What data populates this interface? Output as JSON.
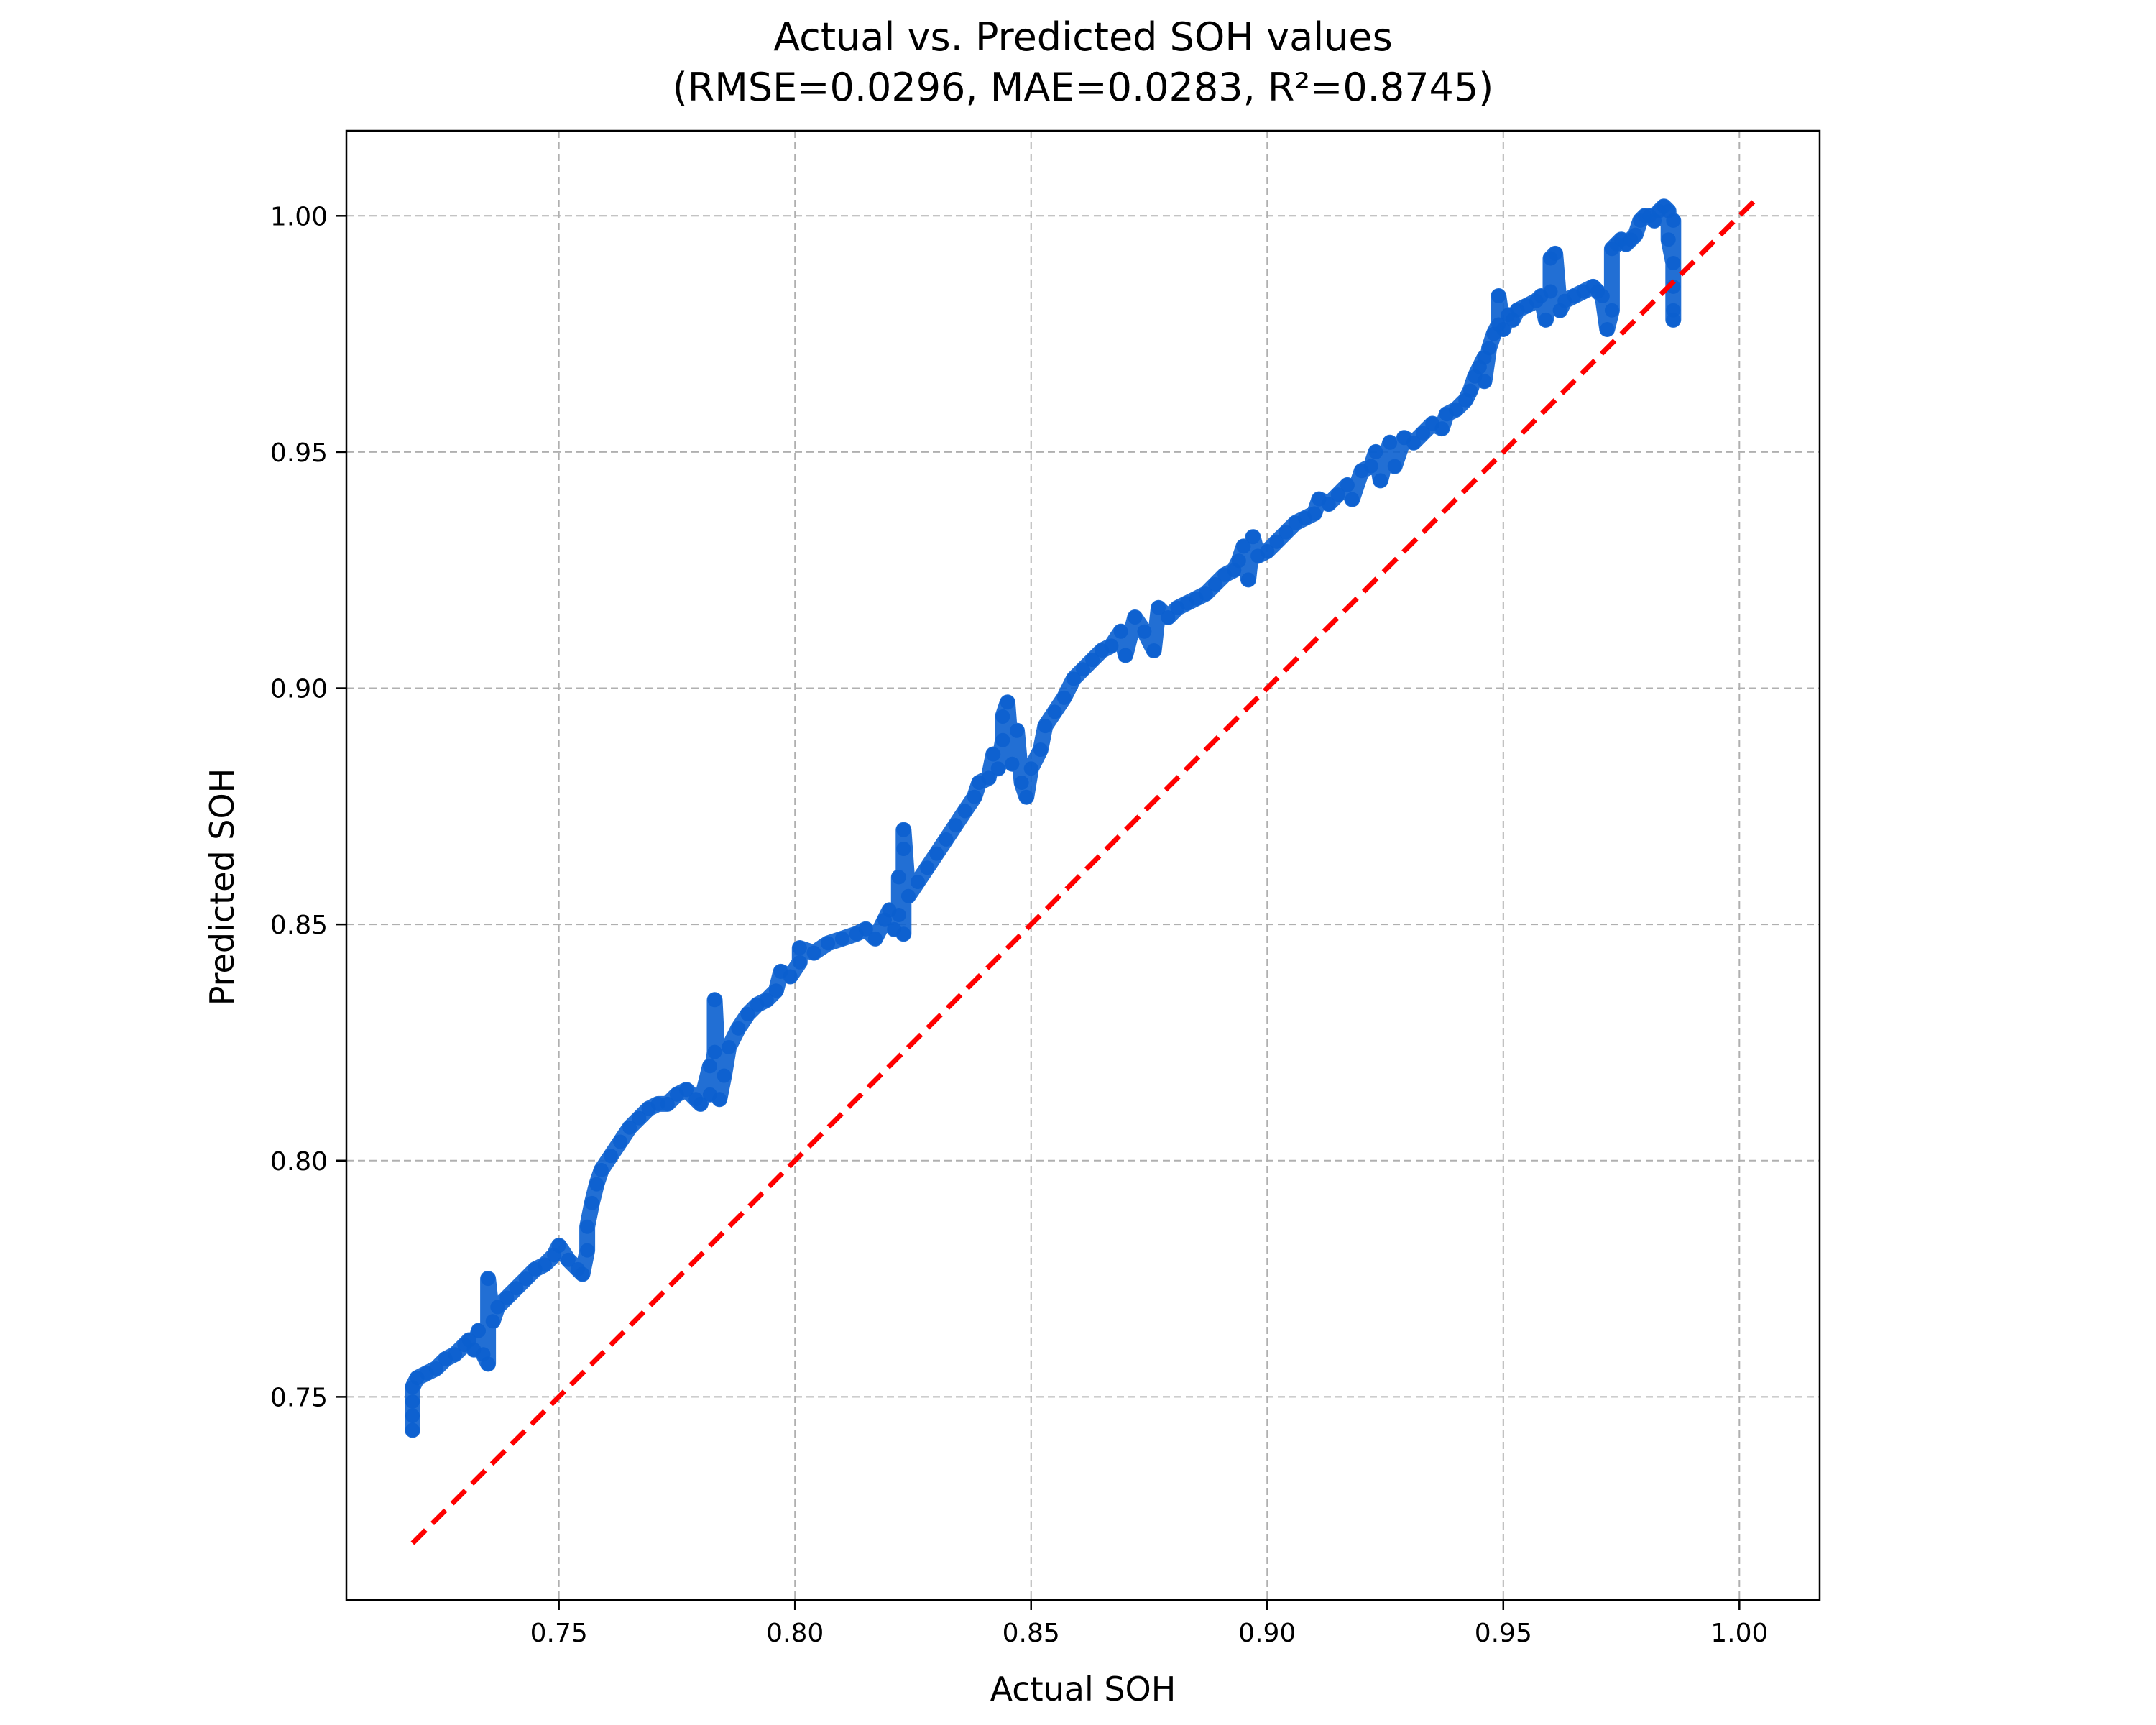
{
  "chart_data": {
    "type": "scatter",
    "title": "Actual vs. Predicted SOH values",
    "subtitle": "(RMSE=0.0296, MAE=0.0283,  R²=0.8745)",
    "xlabel": "Actual SOH",
    "ylabel": "Predicted SOH",
    "xlim": [
      0.705,
      1.017
    ],
    "ylim": [
      0.707,
      1.018
    ],
    "x_ticks": [
      "0.75",
      "0.80",
      "0.85",
      "0.90",
      "0.95",
      "1.00"
    ],
    "y_ticks": [
      "0.75",
      "0.80",
      "0.85",
      "0.90",
      "0.95",
      "1.00"
    ],
    "grid": true,
    "series": [
      {
        "color": "#0a5fcf",
        "marker": "circle",
        "points": [
          [
            0.719,
            0.743
          ],
          [
            0.719,
            0.746
          ],
          [
            0.719,
            0.749
          ],
          [
            0.719,
            0.752
          ],
          [
            0.72,
            0.754
          ],
          [
            0.722,
            0.755
          ],
          [
            0.724,
            0.756
          ],
          [
            0.726,
            0.758
          ],
          [
            0.728,
            0.759
          ],
          [
            0.73,
            0.761
          ],
          [
            0.731,
            0.762
          ],
          [
            0.732,
            0.76
          ],
          [
            0.733,
            0.764
          ],
          [
            0.734,
            0.759
          ],
          [
            0.735,
            0.757
          ],
          [
            0.735,
            0.775
          ],
          [
            0.736,
            0.766
          ],
          [
            0.737,
            0.769
          ],
          [
            0.739,
            0.771
          ],
          [
            0.741,
            0.773
          ],
          [
            0.743,
            0.775
          ],
          [
            0.745,
            0.777
          ],
          [
            0.747,
            0.778
          ],
          [
            0.749,
            0.78
          ],
          [
            0.75,
            0.782
          ],
          [
            0.752,
            0.779
          ],
          [
            0.754,
            0.777
          ],
          [
            0.755,
            0.776
          ],
          [
            0.756,
            0.781
          ],
          [
            0.756,
            0.786
          ],
          [
            0.757,
            0.791
          ],
          [
            0.758,
            0.795
          ],
          [
            0.759,
            0.798
          ],
          [
            0.761,
            0.801
          ],
          [
            0.763,
            0.804
          ],
          [
            0.765,
            0.807
          ],
          [
            0.767,
            0.809
          ],
          [
            0.769,
            0.811
          ],
          [
            0.771,
            0.812
          ],
          [
            0.773,
            0.812
          ],
          [
            0.775,
            0.814
          ],
          [
            0.777,
            0.815
          ],
          [
            0.779,
            0.813
          ],
          [
            0.78,
            0.812
          ],
          [
            0.782,
            0.82
          ],
          [
            0.782,
            0.814
          ],
          [
            0.783,
            0.823
          ],
          [
            0.783,
            0.834
          ],
          [
            0.784,
            0.813
          ],
          [
            0.785,
            0.818
          ],
          [
            0.786,
            0.824
          ],
          [
            0.788,
            0.828
          ],
          [
            0.79,
            0.831
          ],
          [
            0.792,
            0.833
          ],
          [
            0.794,
            0.834
          ],
          [
            0.796,
            0.836
          ],
          [
            0.797,
            0.84
          ],
          [
            0.799,
            0.839
          ],
          [
            0.801,
            0.842
          ],
          [
            0.801,
            0.845
          ],
          [
            0.804,
            0.844
          ],
          [
            0.807,
            0.846
          ],
          [
            0.81,
            0.847
          ],
          [
            0.813,
            0.848
          ],
          [
            0.815,
            0.849
          ],
          [
            0.817,
            0.847
          ],
          [
            0.819,
            0.851
          ],
          [
            0.82,
            0.853
          ],
          [
            0.821,
            0.849
          ],
          [
            0.822,
            0.852
          ],
          [
            0.822,
            0.86
          ],
          [
            0.823,
            0.848
          ],
          [
            0.823,
            0.866
          ],
          [
            0.823,
            0.87
          ],
          [
            0.824,
            0.856
          ],
          [
            0.826,
            0.859
          ],
          [
            0.828,
            0.862
          ],
          [
            0.83,
            0.865
          ],
          [
            0.832,
            0.868
          ],
          [
            0.834,
            0.871
          ],
          [
            0.836,
            0.874
          ],
          [
            0.838,
            0.877
          ],
          [
            0.839,
            0.88
          ],
          [
            0.841,
            0.881
          ],
          [
            0.842,
            0.886
          ],
          [
            0.843,
            0.883
          ],
          [
            0.844,
            0.889
          ],
          [
            0.844,
            0.894
          ],
          [
            0.845,
            0.897
          ],
          [
            0.846,
            0.884
          ],
          [
            0.847,
            0.891
          ],
          [
            0.848,
            0.88
          ],
          [
            0.849,
            0.877
          ],
          [
            0.85,
            0.883
          ],
          [
            0.852,
            0.887
          ],
          [
            0.853,
            0.892
          ],
          [
            0.855,
            0.895
          ],
          [
            0.857,
            0.898
          ],
          [
            0.859,
            0.902
          ],
          [
            0.861,
            0.904
          ],
          [
            0.863,
            0.906
          ],
          [
            0.865,
            0.908
          ],
          [
            0.867,
            0.909
          ],
          [
            0.869,
            0.912
          ],
          [
            0.87,
            0.907
          ],
          [
            0.872,
            0.915
          ],
          [
            0.874,
            0.912
          ],
          [
            0.876,
            0.908
          ],
          [
            0.877,
            0.917
          ],
          [
            0.879,
            0.915
          ],
          [
            0.881,
            0.917
          ],
          [
            0.883,
            0.918
          ],
          [
            0.885,
            0.919
          ],
          [
            0.887,
            0.92
          ],
          [
            0.889,
            0.922
          ],
          [
            0.891,
            0.924
          ],
          [
            0.893,
            0.925
          ],
          [
            0.894,
            0.927
          ],
          [
            0.895,
            0.93
          ],
          [
            0.896,
            0.923
          ],
          [
            0.897,
            0.932
          ],
          [
            0.898,
            0.928
          ],
          [
            0.9,
            0.929
          ],
          [
            0.902,
            0.931
          ],
          [
            0.904,
            0.933
          ],
          [
            0.906,
            0.935
          ],
          [
            0.908,
            0.936
          ],
          [
            0.91,
            0.937
          ],
          [
            0.911,
            0.94
          ],
          [
            0.913,
            0.939
          ],
          [
            0.915,
            0.941
          ],
          [
            0.917,
            0.943
          ],
          [
            0.918,
            0.94
          ],
          [
            0.92,
            0.946
          ],
          [
            0.922,
            0.947
          ],
          [
            0.923,
            0.95
          ],
          [
            0.924,
            0.944
          ],
          [
            0.926,
            0.952
          ],
          [
            0.927,
            0.947
          ],
          [
            0.929,
            0.953
          ],
          [
            0.931,
            0.952
          ],
          [
            0.933,
            0.954
          ],
          [
            0.935,
            0.956
          ],
          [
            0.937,
            0.955
          ],
          [
            0.938,
            0.958
          ],
          [
            0.94,
            0.959
          ],
          [
            0.942,
            0.961
          ],
          [
            0.943,
            0.963
          ],
          [
            0.944,
            0.966
          ],
          [
            0.945,
            0.968
          ],
          [
            0.946,
            0.97
          ],
          [
            0.946,
            0.965
          ],
          [
            0.947,
            0.972
          ],
          [
            0.948,
            0.975
          ],
          [
            0.949,
            0.977
          ],
          [
            0.949,
            0.983
          ],
          [
            0.95,
            0.976
          ],
          [
            0.951,
            0.979
          ],
          [
            0.952,
            0.978
          ],
          [
            0.953,
            0.98
          ],
          [
            0.955,
            0.981
          ],
          [
            0.957,
            0.982
          ],
          [
            0.958,
            0.983
          ],
          [
            0.959,
            0.978
          ],
          [
            0.96,
            0.984
          ],
          [
            0.96,
            0.991
          ],
          [
            0.961,
            0.992
          ],
          [
            0.962,
            0.98
          ],
          [
            0.963,
            0.982
          ],
          [
            0.965,
            0.983
          ],
          [
            0.967,
            0.984
          ],
          [
            0.969,
            0.985
          ],
          [
            0.97,
            0.984
          ],
          [
            0.971,
            0.983
          ],
          [
            0.972,
            0.976
          ],
          [
            0.973,
            0.98
          ],
          [
            0.973,
            0.993
          ],
          [
            0.974,
            0.994
          ],
          [
            0.975,
            0.995
          ],
          [
            0.976,
            0.994
          ],
          [
            0.977,
            0.995
          ],
          [
            0.978,
            0.996
          ],
          [
            0.979,
            0.999
          ],
          [
            0.98,
            1.0
          ],
          [
            0.981,
            1.0
          ],
          [
            0.982,
            0.999
          ],
          [
            0.983,
            1.001
          ],
          [
            0.984,
            1.002
          ],
          [
            0.985,
            1.001
          ],
          [
            0.985,
            0.995
          ],
          [
            0.986,
            0.99
          ],
          [
            0.986,
            0.985
          ],
          [
            0.986,
            0.98
          ],
          [
            0.986,
            0.978
          ],
          [
            0.986,
            0.999
          ]
        ]
      },
      {
        "color": "#ff0000",
        "line": "dashed",
        "points": [
          [
            0.719,
            0.719
          ],
          [
            1.003,
            1.003
          ]
        ]
      }
    ]
  }
}
